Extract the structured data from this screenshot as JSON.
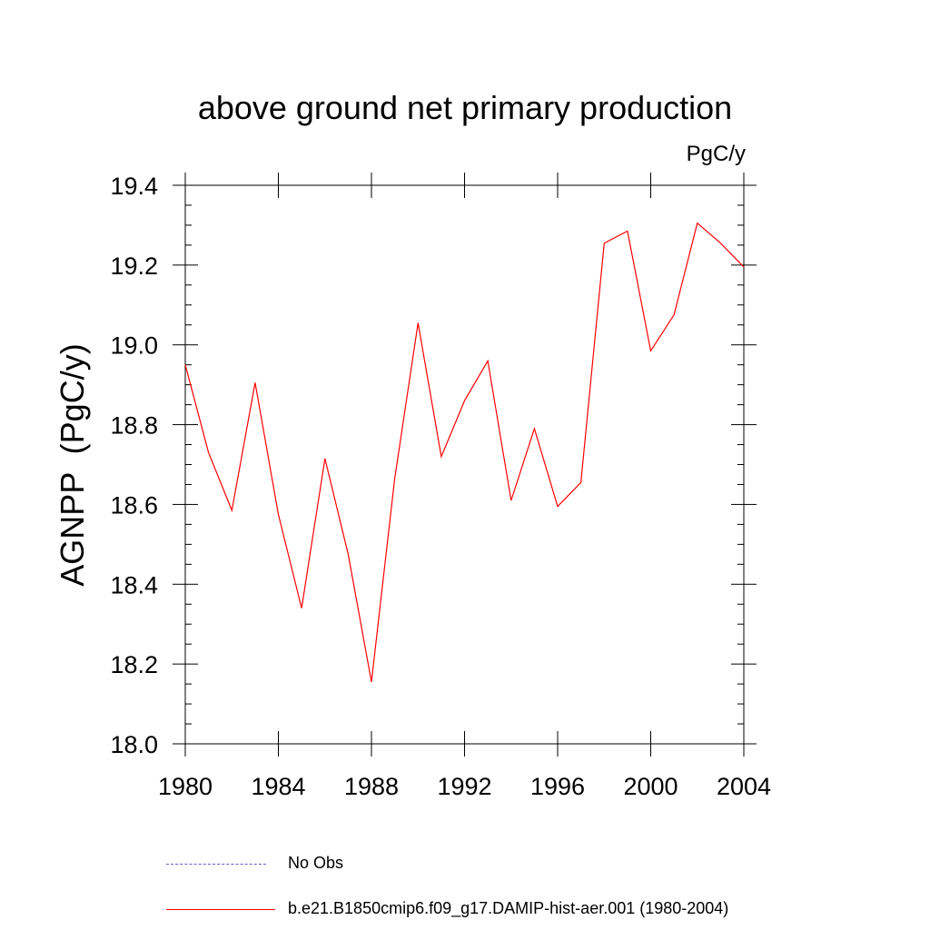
{
  "chart_data": {
    "type": "line",
    "title": "above ground net primary production",
    "units": "PgC/y",
    "ylabel": "AGNPP  (PgC/y)",
    "xlabel": "",
    "xlim": [
      1980,
      2004
    ],
    "ylim": [
      18.0,
      19.4
    ],
    "xticks": [
      1980,
      1984,
      1988,
      1992,
      1996,
      2000,
      2004
    ],
    "xticklabels": [
      "1980",
      "1984",
      "1988",
      "1992",
      "1996",
      "2000",
      "2004"
    ],
    "yticks": [
      18.0,
      18.2,
      18.4,
      18.6,
      18.8,
      19.0,
      19.2,
      19.4
    ],
    "yticklabels": [
      "18.0",
      "18.2",
      "18.4",
      "18.6",
      "18.8",
      "19.0",
      "19.2",
      "19.4"
    ],
    "grid": false,
    "legend_position": "bottom",
    "series": [
      {
        "name": "b.e21.B1850cmip6.f09_g17.DAMIP-hist-aer.001 (1980-2004)",
        "color": "#ff0000",
        "style": "solid",
        "x": [
          1980,
          1981,
          1982,
          1983,
          1984,
          1985,
          1986,
          1987,
          1988,
          1989,
          1990,
          1991,
          1992,
          1993,
          1994,
          1995,
          1996,
          1997,
          1998,
          1999,
          2000,
          2001,
          2002,
          2003,
          2004
        ],
        "y": [
          18.95,
          18.73,
          18.585,
          18.905,
          18.575,
          18.34,
          18.715,
          18.475,
          18.155,
          18.665,
          19.055,
          18.72,
          18.86,
          18.96,
          18.61,
          18.79,
          18.595,
          18.655,
          19.255,
          19.285,
          18.985,
          19.075,
          19.305,
          19.255,
          19.195
        ]
      }
    ],
    "legend": [
      {
        "label": "No Obs",
        "color": "#6a5acd",
        "style": "dashed"
      },
      {
        "label": "b.e21.B1850cmip6.f09_g17.DAMIP-hist-aer.001 (1980-2004)",
        "color": "#ff0000",
        "style": "solid"
      }
    ]
  }
}
